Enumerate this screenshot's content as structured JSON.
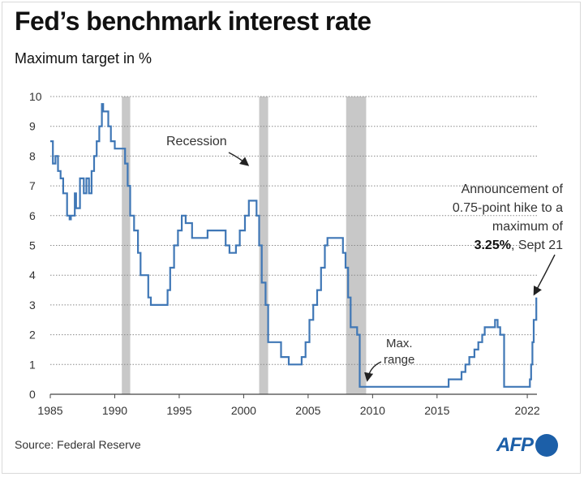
{
  "chart_data": {
    "type": "line",
    "title": "Fed’s benchmark interest rate",
    "subtitle": "Maximum target in %",
    "source": "Source: Federal Reserve",
    "logo_text": "AFP",
    "brand_color": "#1c5fa8",
    "line_color": "#3f77b6",
    "recession_color": "#c8c8c8",
    "xlim": [
      1985,
      2022.75
    ],
    "ylim": [
      0,
      10
    ],
    "x_ticks": [
      1985,
      1990,
      1995,
      2000,
      2005,
      2010,
      2015,
      2022
    ],
    "y_ticks": [
      0,
      1,
      2,
      3,
      4,
      5,
      6,
      7,
      8,
      9,
      10
    ],
    "grid": true,
    "line_style": "step",
    "recessions": [
      [
        1990.55,
        1991.2
      ],
      [
        2001.2,
        2001.9
      ],
      [
        2007.95,
        2009.5
      ]
    ],
    "series": [
      {
        "x": [
          1985.0,
          1985.2,
          1985.4,
          1985.6,
          1985.8,
          1986.0,
          1986.3,
          1986.5,
          1986.6,
          1986.9,
          1987.0,
          1987.3,
          1987.6,
          1987.8,
          1988.0,
          1988.2,
          1988.4,
          1988.6,
          1988.8,
          1989.0,
          1989.1,
          1989.5,
          1989.7,
          1990.0,
          1990.8,
          1991.0,
          1991.2,
          1991.5,
          1991.8,
          1992.0,
          1992.6,
          1992.8,
          1993.0,
          1994.1,
          1994.3,
          1994.6,
          1994.9,
          1995.2,
          1995.5,
          1996.0,
          1997.2,
          1998.6,
          1998.9,
          1999.4,
          1999.7,
          2000.1,
          2000.4,
          2001.0,
          2001.2,
          2001.4,
          2001.7,
          2001.9,
          2002.9,
          2003.5,
          2004.5,
          2004.8,
          2005.1,
          2005.4,
          2005.7,
          2006.0,
          2006.3,
          2006.5,
          2007.7,
          2007.9,
          2008.1,
          2008.3,
          2008.8,
          2009.0,
          2015.9,
          2016.9,
          2017.2,
          2017.5,
          2017.9,
          2018.2,
          2018.5,
          2018.7,
          2019.5,
          2019.7,
          2019.9,
          2020.2,
          2022.2,
          2022.3,
          2022.4,
          2022.5,
          2022.7
        ],
        "y": [
          8.5,
          7.75,
          8.0,
          7.5,
          7.25,
          6.75,
          6.0,
          5.875,
          6.0,
          6.75,
          6.25,
          7.25,
          6.75,
          7.25,
          6.75,
          7.5,
          8.0,
          8.5,
          9.0,
          9.75,
          9.5,
          9.0,
          8.5,
          8.25,
          7.75,
          7.0,
          6.0,
          5.5,
          4.75,
          4.0,
          3.25,
          3.0,
          3.0,
          3.5,
          4.25,
          5.0,
          5.5,
          6.0,
          5.75,
          5.25,
          5.5,
          5.0,
          4.75,
          5.0,
          5.5,
          6.0,
          6.5,
          6.0,
          5.0,
          3.75,
          3.0,
          1.75,
          1.25,
          1.0,
          1.25,
          1.75,
          2.5,
          3.0,
          3.5,
          4.25,
          5.0,
          5.25,
          4.75,
          4.25,
          3.25,
          2.25,
          2.0,
          0.25,
          0.5,
          0.75,
          1.0,
          1.25,
          1.5,
          1.75,
          2.0,
          2.25,
          2.5,
          2.25,
          2.0,
          0.25,
          0.5,
          1.0,
          1.75,
          2.5,
          3.25
        ]
      }
    ],
    "annotations": {
      "recession": "Recession",
      "max_range_1": "Max.",
      "max_range_2": "range",
      "announce_1": "Announcement of",
      "announce_2": "0.75-point hike to a",
      "announce_3": "maximum of",
      "announce_4_bold": "3.25%",
      "announce_4_rest": ", Sept 21"
    }
  }
}
